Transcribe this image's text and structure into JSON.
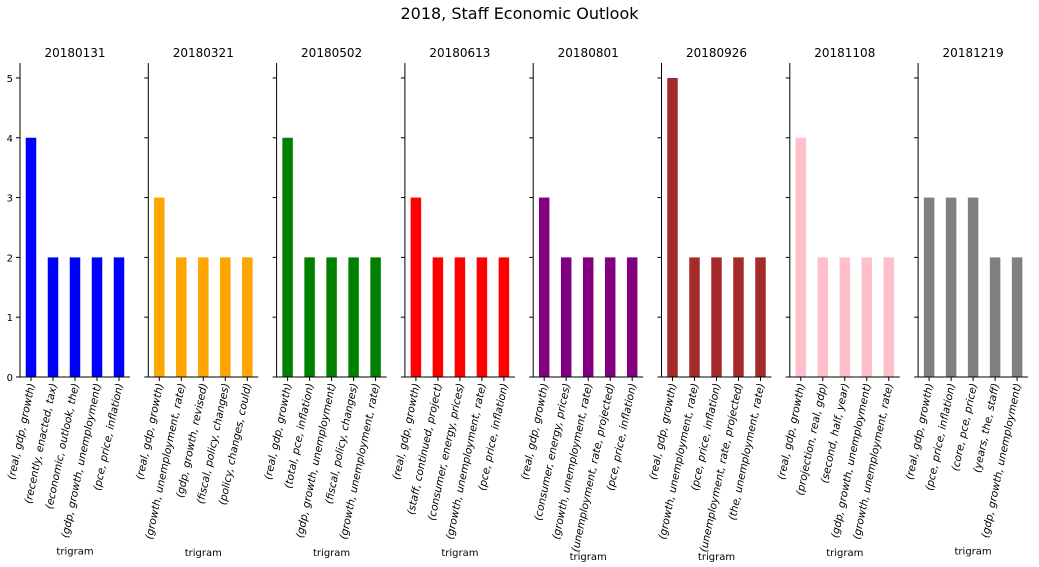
{
  "figure": {
    "title": "2018, Staff Economic Outlook"
  },
  "chart_data": [
    {
      "type": "bar",
      "title": "20180131",
      "xlabel": "trigram",
      "ylabel": "",
      "ylim": [
        0,
        5.25
      ],
      "yticks": [
        0,
        1,
        2,
        3,
        4,
        5
      ],
      "color": "#0000ff",
      "categories": [
        "(real, gdp, growth)",
        "(recently, enacted, tax)",
        "(economic, outlook, the)",
        "(gdp, growth, unemployment)",
        "(pce, price, inflation)"
      ],
      "values": [
        4,
        2,
        2,
        2,
        2
      ]
    },
    {
      "type": "bar",
      "title": "20180321",
      "xlabel": "trigram",
      "ylabel": "",
      "ylim": [
        0,
        5.25
      ],
      "yticks": [
        0,
        1,
        2,
        3,
        4,
        5
      ],
      "color": "#ffa500",
      "categories": [
        "(real, gdp, growth)",
        "(growth, unemployment, rate)",
        "(gdp, growth, revised)",
        "(fiscal, policy, changes)",
        "(policy, changes, could)"
      ],
      "values": [
        3,
        2,
        2,
        2,
        2
      ]
    },
    {
      "type": "bar",
      "title": "20180502",
      "xlabel": "trigram",
      "ylabel": "",
      "ylim": [
        0,
        5.25
      ],
      "yticks": [
        0,
        1,
        2,
        3,
        4,
        5
      ],
      "color": "#008000",
      "categories": [
        "(real, gdp, growth)",
        "(total, pce, inflation)",
        "(gdp, growth, unemployment)",
        "(fiscal, policy, changes)",
        "(growth, unemployment, rate)"
      ],
      "values": [
        4,
        2,
        2,
        2,
        2
      ]
    },
    {
      "type": "bar",
      "title": "20180613",
      "xlabel": "trigram",
      "ylabel": "",
      "ylim": [
        0,
        5.25
      ],
      "yticks": [
        0,
        1,
        2,
        3,
        4,
        5
      ],
      "color": "#ff0000",
      "categories": [
        "(real, gdp, growth)",
        "(staff, continued, project)",
        "(consumer, energy, prices)",
        "(growth, unemployment, rate)",
        "(pce, price, inflation)"
      ],
      "values": [
        3,
        2,
        2,
        2,
        2
      ]
    },
    {
      "type": "bar",
      "title": "20180801",
      "xlabel": "trigram",
      "ylabel": "",
      "ylim": [
        0,
        5.25
      ],
      "yticks": [
        0,
        1,
        2,
        3,
        4,
        5
      ],
      "color": "#800080",
      "categories": [
        "(real, gdp, growth)",
        "(consumer, energy, prices)",
        "(growth, unemployment, rate)",
        "(unemployment, rate, projected)",
        "(pce, price, inflation)"
      ],
      "values": [
        3,
        2,
        2,
        2,
        2
      ]
    },
    {
      "type": "bar",
      "title": "20180926",
      "xlabel": "trigram",
      "ylabel": "",
      "ylim": [
        0,
        5.25
      ],
      "yticks": [
        0,
        1,
        2,
        3,
        4,
        5
      ],
      "color": "#a52a2a",
      "categories": [
        "(real, gdp, growth)",
        "(growth, unemployment, rate)",
        "(pce, price, inflation)",
        "(unemployment, rate, projected)",
        "(the, unemployment, rate)"
      ],
      "values": [
        5,
        2,
        2,
        2,
        2
      ]
    },
    {
      "type": "bar",
      "title": "20181108",
      "xlabel": "trigram",
      "ylabel": "",
      "ylim": [
        0,
        5.25
      ],
      "yticks": [
        0,
        1,
        2,
        3,
        4,
        5
      ],
      "color": "#ffc0cb",
      "categories": [
        "(real, gdp, growth)",
        "(projection, real, gdp)",
        "(second, half, year)",
        "(gdp, growth, unemployment)",
        "(growth, unemployment, rate)"
      ],
      "values": [
        4,
        2,
        2,
        2,
        2
      ]
    },
    {
      "type": "bar",
      "title": "20181219",
      "xlabel": "trigram",
      "ylabel": "",
      "ylim": [
        0,
        5.25
      ],
      "yticks": [
        0,
        1,
        2,
        3,
        4,
        5
      ],
      "color": "#808080",
      "categories": [
        "(real, gdp, growth)",
        "(pce, price, inflation)",
        "(core, pce, price)",
        "(years, the, staff)",
        "(gdp, growth, unemployment)"
      ],
      "values": [
        3,
        3,
        3,
        2,
        2
      ]
    }
  ]
}
